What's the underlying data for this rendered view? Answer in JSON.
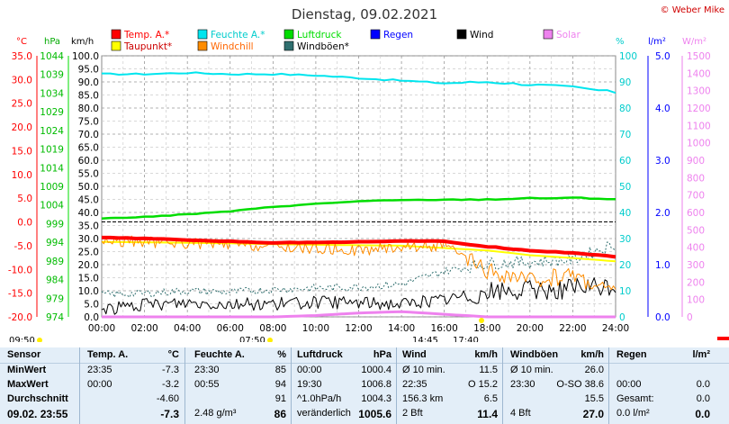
{
  "title": "Dienstag, 09.02.2021",
  "copyright": "© Weber Mike",
  "legend": [
    {
      "name": "Temp. A.*",
      "color": "#ff0000",
      "row": 0,
      "col": 0
    },
    {
      "name": "Feuchte A.*",
      "color": "#00e5ee",
      "row": 0,
      "col": 1
    },
    {
      "name": "Luftdruck",
      "color": "#00dd00",
      "row": 0,
      "col": 2
    },
    {
      "name": "Regen",
      "color": "#0000ff",
      "row": 0,
      "col": 3
    },
    {
      "name": "Wind",
      "color": "#000000",
      "row": 0,
      "col": 4
    },
    {
      "name": "Solar",
      "color": "#ee82ee",
      "row": 0,
      "col": 5
    },
    {
      "name": "Taupunkt*",
      "color": "#ffff00",
      "row": 1,
      "col": 0
    },
    {
      "name": "Windchill",
      "color": "#ff8c00",
      "row": 1,
      "col": 1
    },
    {
      "name": "Windböen*",
      "color": "#2f6f6f",
      "row": 1,
      "col": 2
    }
  ],
  "axis_units": {
    "temp": "°C",
    "pressure": "hPa",
    "wind": "km/h",
    "humidity": "%",
    "rain": "l/m²",
    "solar": "W/m²"
  },
  "axes": {
    "temp": {
      "color": "#ff0000",
      "ticks": [
        "35.0",
        "30.0",
        "25.0",
        "20.0",
        "15.0",
        "10.0",
        "5.0",
        "0.0",
        "-5.0",
        "-10.0",
        "-15.0",
        "-20.0"
      ]
    },
    "pressure": {
      "color": "#00dd00",
      "ticks": [
        "1044",
        "1039",
        "1034",
        "1029",
        "1024",
        "1019",
        "1014",
        "1009",
        "1004",
        "999",
        "994",
        "989",
        "984",
        "979",
        "974"
      ]
    },
    "wind": {
      "color": "#000000",
      "ticks": [
        "100.0",
        "95.0",
        "90.0",
        "85.0",
        "80.0",
        "75.0",
        "70.0",
        "65.0",
        "60.0",
        "55.0",
        "50.0",
        "45.0",
        "40.0",
        "35.0",
        "30.0",
        "25.0",
        "20.0",
        "15.0",
        "10.0",
        "5.0",
        "0.0"
      ]
    },
    "humidity": {
      "color": "#00cccc",
      "ticks": [
        "100",
        "90",
        "80",
        "70",
        "60",
        "50",
        "40",
        "30",
        "20",
        "10",
        "0"
      ]
    },
    "rain": {
      "color": "#0000ff",
      "ticks": [
        "5.0",
        "4.0",
        "3.0",
        "2.0",
        "1.0",
        "0.0"
      ]
    },
    "solar": {
      "color": "#ee82ee",
      "ticks": [
        "1500",
        "1400",
        "1300",
        "1200",
        "1100",
        "1000",
        "900",
        "800",
        "700",
        "600",
        "500",
        "400",
        "300",
        "200",
        "100",
        "0"
      ]
    }
  },
  "time_ticks": [
    "00:00",
    "02:00",
    "04:00",
    "06:00",
    "08:00",
    "10:00",
    "12:00",
    "14:00",
    "16:00",
    "18:00",
    "20:00",
    "22:00",
    "24:00"
  ],
  "markers": {
    "sunrise_prev": "09:50",
    "sunrise": "07:50",
    "moon": "14:45",
    "sunset": "17:40"
  },
  "chart_data": {
    "type": "line",
    "x": [
      "00:00",
      "02:00",
      "04:00",
      "06:00",
      "08:00",
      "10:00",
      "12:00",
      "14:00",
      "16:00",
      "18:00",
      "20:00",
      "22:00",
      "24:00"
    ],
    "xlim": [
      0,
      24
    ],
    "series": [
      {
        "name": "Temp. A.*",
        "axis": "temp",
        "color": "#ff0000",
        "values": [
          -3.3,
          -3.5,
          -3.8,
          -4.1,
          -4.4,
          -4.3,
          -4.2,
          -4.0,
          -4.1,
          -5.2,
          -6.0,
          -6.5,
          -7.3
        ]
      },
      {
        "name": "Feuchte A.*",
        "axis": "humidity",
        "color": "#00e5ee",
        "values": [
          93,
          93,
          93.5,
          93,
          93,
          92.5,
          91.5,
          90.5,
          89.5,
          90,
          89,
          88,
          86
        ]
      },
      {
        "name": "Luftdruck",
        "axis": "pressure",
        "color": "#00dd00",
        "values": [
          1000.4,
          1000.8,
          1001.5,
          1002.3,
          1003.5,
          1004.3,
          1005.0,
          1005.3,
          1005.4,
          1005.5,
          1005.8,
          1005.9,
          1005.6
        ]
      },
      {
        "name": "Taupunkt*",
        "axis": "temp",
        "color": "#ffff00",
        "values": [
          -4.2,
          -4.3,
          -4.4,
          -4.5,
          -4.7,
          -4.8,
          -4.9,
          -5.0,
          -5.5,
          -6.0,
          -7.0,
          -7.6,
          -8.3
        ]
      },
      {
        "name": "Windchill",
        "axis": "temp",
        "color": "#ff8c00",
        "values": [
          -4.0,
          -4.2,
          -4.5,
          -4.8,
          -5.2,
          -5.6,
          -6.0,
          -5.2,
          -5.0,
          -10.5,
          -12.5,
          -11.0,
          -15.0
        ]
      },
      {
        "name": "Windböen*",
        "axis": "wind",
        "color": "#2f6f6f",
        "values": [
          8.5,
          9.0,
          10.0,
          9.5,
          10.5,
          11.0,
          11.5,
          12.5,
          17.5,
          20.5,
          21.0,
          22.0,
          28.0
        ]
      },
      {
        "name": "Wind",
        "axis": "wind",
        "color": "#000000",
        "values": [
          3.0,
          4.5,
          5.5,
          5.0,
          5.0,
          5.5,
          5.5,
          5.0,
          6.5,
          9.5,
          10.0,
          11.0,
          11.4
        ]
      },
      {
        "name": "Solar",
        "axis": "solar",
        "color": "#ee82ee",
        "values": [
          0,
          0,
          0,
          0,
          0,
          8,
          22,
          30,
          15,
          0,
          0,
          0,
          0
        ]
      }
    ]
  },
  "stats": {
    "labels": [
      "Sensor",
      "MinWert",
      "MaxWert",
      "Durchschnitt",
      "09.02. 23:55"
    ],
    "temp": {
      "header": "Temp. A.",
      "unit": "°C",
      "rows": [
        [
          "23:35",
          "-7.3"
        ],
        [
          "00:00",
          "-3.2"
        ],
        [
          "",
          "-4.60"
        ],
        [
          "",
          "-7.3"
        ]
      ]
    },
    "hum": {
      "header": "Feuchte A.",
      "unit": "%",
      "rows": [
        [
          "23:30",
          "85"
        ],
        [
          "00:55",
          "94"
        ],
        [
          "",
          "91"
        ],
        [
          "2.48 g/m³",
          "86"
        ]
      ]
    },
    "press": {
      "header": "Luftdruck",
      "unit": "hPa",
      "rows": [
        [
          "00:00",
          "1000.4"
        ],
        [
          "19:30",
          "1006.8"
        ],
        [
          "^1.0hPa/h",
          "1004.3"
        ],
        [
          "veränderlich",
          "1005.6"
        ]
      ]
    },
    "wind": {
      "header": "Wind",
      "unit": "km/h",
      "rows": [
        [
          "Ø 10 min.",
          "11.5"
        ],
        [
          "22:35",
          "O 15.2"
        ],
        [
          "156.3 km",
          "6.5"
        ],
        [
          "2 Bft",
          "11.4"
        ]
      ]
    },
    "gust": {
      "header": "Windböen",
      "unit": "km/h",
      "rows": [
        [
          "Ø 10 min.",
          "26.0"
        ],
        [
          "23:30",
          "O-SO 38.6"
        ],
        [
          "",
          "15.5"
        ],
        [
          "4 Bft",
          "27.0"
        ]
      ]
    },
    "rain": {
      "header": "Regen",
      "unit": "l/m²",
      "rows": [
        [
          "",
          ""
        ],
        [
          "00:00",
          "0.0"
        ],
        [
          "Gesamt:",
          "0.0"
        ],
        [
          "0.0 l/m²",
          "0.0"
        ]
      ]
    }
  }
}
